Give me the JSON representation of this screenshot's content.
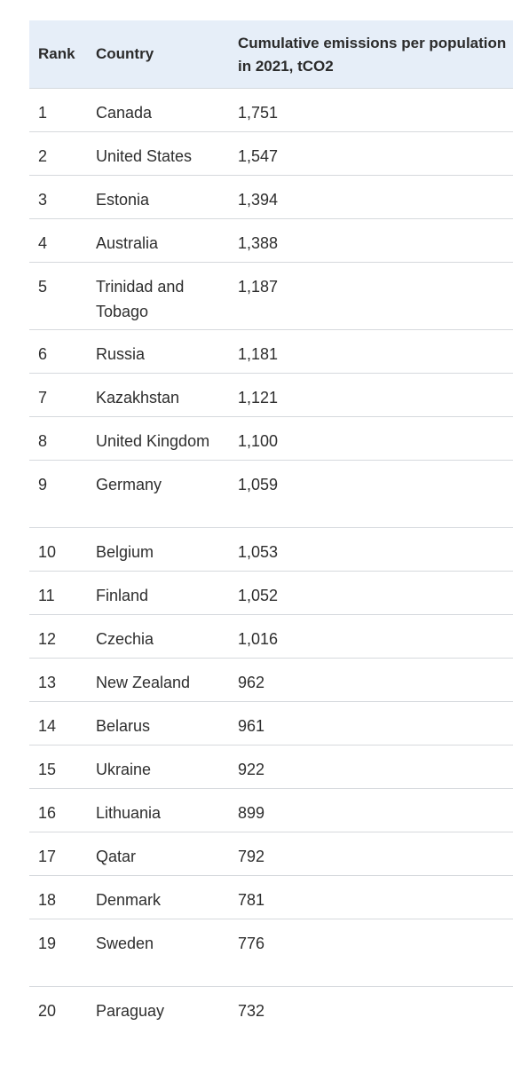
{
  "table": {
    "headers": {
      "rank": "Rank",
      "country": "Country",
      "emissions": "Cumulative emissions per population in 2021, tCO2"
    },
    "rows": [
      {
        "rank": "1",
        "country": "Canada",
        "emissions": "1,751"
      },
      {
        "rank": "2",
        "country": "United States",
        "emissions": "1,547"
      },
      {
        "rank": "3",
        "country": "Estonia",
        "emissions": "1,394"
      },
      {
        "rank": "4",
        "country": "Australia",
        "emissions": "1,388"
      },
      {
        "rank": "5",
        "country": "Trinidad and Tobago",
        "emissions": "1,187"
      },
      {
        "rank": "6",
        "country": "Russia",
        "emissions": "1,181"
      },
      {
        "rank": "7",
        "country": "Kazakhstan",
        "emissions": "1,121"
      },
      {
        "rank": "8",
        "country": "United Kingdom",
        "emissions": "1,100"
      },
      {
        "rank": "9",
        "country": "Germany",
        "emissions": "1,059"
      },
      {
        "rank": "10",
        "country": "Belgium",
        "emissions": "1,053"
      },
      {
        "rank": "11",
        "country": "Finland",
        "emissions": "1,052"
      },
      {
        "rank": "12",
        "country": "Czechia",
        "emissions": "1,016"
      },
      {
        "rank": "13",
        "country": "New Zealand",
        "emissions": "962"
      },
      {
        "rank": "14",
        "country": "Belarus",
        "emissions": "961"
      },
      {
        "rank": "15",
        "country": "Ukraine",
        "emissions": "922"
      },
      {
        "rank": "16",
        "country": "Lithuania",
        "emissions": "899"
      },
      {
        "rank": "17",
        "country": "Qatar",
        "emissions": "792"
      },
      {
        "rank": "18",
        "country": "Denmark",
        "emissions": "781"
      },
      {
        "rank": "19",
        "country": "Sweden",
        "emissions": "776"
      },
      {
        "rank": "20",
        "country": "Paraguay",
        "emissions": "732"
      }
    ]
  }
}
